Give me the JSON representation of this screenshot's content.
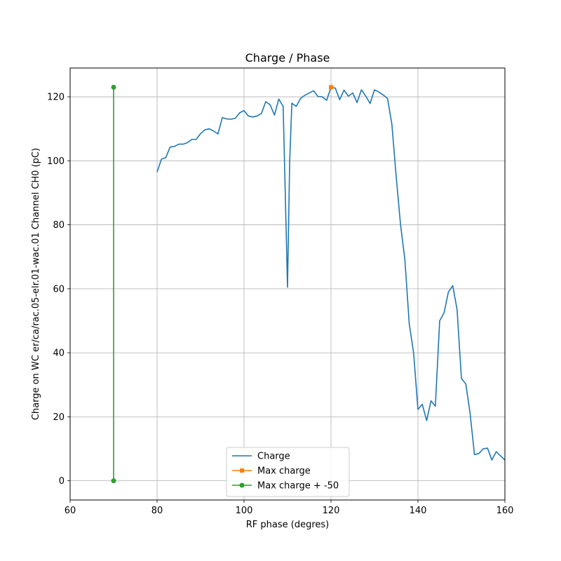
{
  "chart_data": {
    "type": "line",
    "title": "Charge / Phase",
    "xlabel": "RF phase (degres)",
    "ylabel": "Charge on WC er/ca/rac.05-elr.01-wac.01 Channel CH0 (pC)",
    "xlim": [
      60,
      160
    ],
    "ylim": [
      -6,
      129
    ],
    "xticks": [
      60,
      80,
      100,
      120,
      140,
      160
    ],
    "yticks": [
      0,
      20,
      40,
      60,
      80,
      100,
      120
    ],
    "grid": true,
    "legend_position": "lower-center",
    "series": [
      {
        "name": "Charge",
        "color": "#1f77b4",
        "marker": "none",
        "x": [
          80,
          81,
          82,
          83,
          84,
          85,
          86,
          87,
          88,
          89,
          90,
          91,
          92,
          93,
          94,
          95,
          96,
          97,
          98,
          99,
          100,
          101,
          102,
          103,
          104,
          105,
          106,
          107,
          108,
          109,
          110,
          110.5,
          111,
          112,
          113,
          114,
          115,
          116,
          117,
          118,
          119,
          120,
          121,
          122,
          123,
          124,
          125,
          126,
          127,
          128,
          129,
          130,
          131,
          132,
          133,
          134,
          135,
          136,
          137,
          138,
          139,
          140,
          141,
          142,
          143,
          144,
          145,
          146,
          147,
          148,
          149,
          150,
          151,
          152,
          153,
          154,
          155,
          156,
          157,
          158,
          159,
          160
        ],
        "y": [
          96.5,
          100.5,
          101,
          104.3,
          104.5,
          105.2,
          105.2,
          105.7,
          106.7,
          106.7,
          108.5,
          109.7,
          110,
          109.3,
          108.4,
          113.5,
          113.1,
          113,
          113.3,
          115,
          115.7,
          114,
          113.7,
          114,
          114.8,
          118.5,
          117.5,
          114.3,
          119.3,
          117,
          60.5,
          100,
          118,
          117,
          119.5,
          120.5,
          121.2,
          121.9,
          120.1,
          120,
          118.9,
          123,
          122.7,
          119.1,
          122.1,
          120.2,
          121.2,
          118.2,
          122.2,
          120.2,
          117.9,
          122.2,
          121.5,
          120.6,
          119.5,
          111.5,
          95,
          80,
          69,
          49,
          40,
          22.3,
          23.9,
          18.8,
          25,
          23.3,
          50,
          52.5,
          59,
          61,
          53.5,
          32,
          30.3,
          21,
          8.2,
          8.5,
          10,
          10.2,
          6.5,
          9.1,
          7.8,
          6.5
        ]
      },
      {
        "name": "Max charge",
        "color": "#ff7f0e",
        "marker": "x",
        "x": [
          120
        ],
        "y": [
          123
        ]
      },
      {
        "name": "Max charge + -50",
        "color": "#2ca02c",
        "marker": "o",
        "x": [
          70,
          70
        ],
        "y": [
          123,
          0
        ]
      }
    ]
  }
}
